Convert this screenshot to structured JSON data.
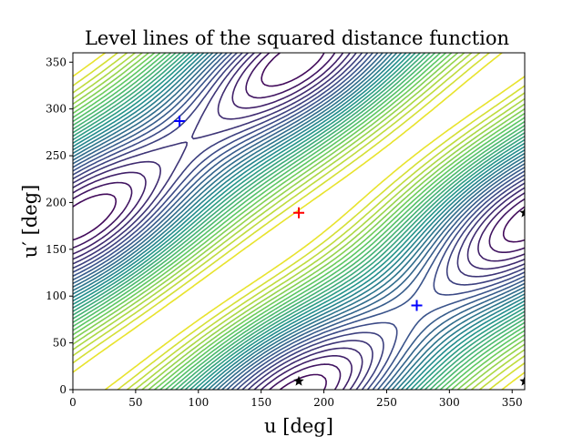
{
  "chart_data": {
    "type": "contour",
    "title": "Level lines of the squared distance function",
    "xlabel": "u [deg]",
    "ylabel": "u′ [deg]",
    "xlim": [
      0,
      360
    ],
    "ylim": [
      0,
      360
    ],
    "xticks": [
      "0",
      "50",
      "100",
      "150",
      "200",
      "250",
      "300",
      "350"
    ],
    "yticks": [
      "0",
      "50",
      "100",
      "150",
      "200",
      "250",
      "300",
      "350"
    ],
    "colormap": [
      "#440154",
      "#3b528b",
      "#21918c",
      "#5ec962",
      "#fde725"
    ],
    "grid": false,
    "markers": [
      {
        "kind": "plus",
        "color": "#ff0000",
        "x": 180,
        "y": 189
      },
      {
        "kind": "plus",
        "color": "#0000ff",
        "x": 85,
        "y": 287
      },
      {
        "kind": "plus",
        "color": "#0000ff",
        "x": 274,
        "y": 90
      },
      {
        "kind": "star",
        "color": "#000000",
        "x": 180,
        "y": 9
      },
      {
        "kind": "star",
        "color": "#000000",
        "x": 360,
        "y": 189
      },
      {
        "kind": "star",
        "color": "#000000",
        "x": 360,
        "y": 9
      }
    ]
  }
}
